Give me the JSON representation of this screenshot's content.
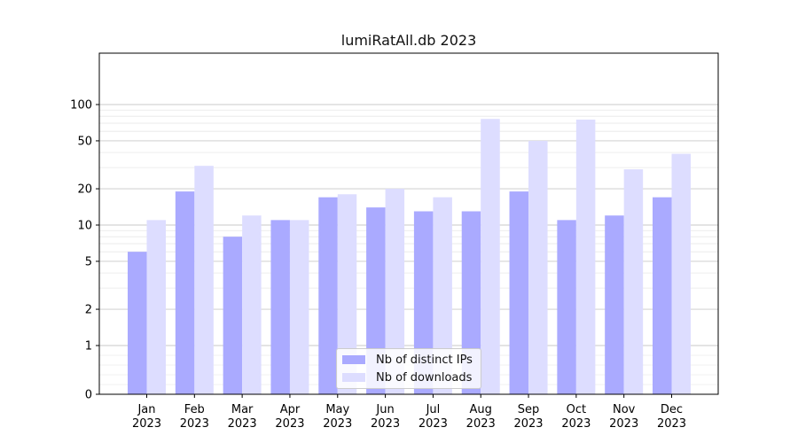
{
  "chart_data": {
    "type": "bar",
    "title": "lumiRatAll.db 2023",
    "xlabel": "",
    "ylabel": "",
    "yscale": "log",
    "yticks": [
      0,
      1,
      2,
      5,
      10,
      20,
      50,
      100
    ],
    "categories": [
      [
        "Jan",
        "2023"
      ],
      [
        "Feb",
        "2023"
      ],
      [
        "Mar",
        "2023"
      ],
      [
        "Apr",
        "2023"
      ],
      [
        "May",
        "2023"
      ],
      [
        "Jun",
        "2023"
      ],
      [
        "Jul",
        "2023"
      ],
      [
        "Aug",
        "2023"
      ],
      [
        "Sep",
        "2023"
      ],
      [
        "Oct",
        "2023"
      ],
      [
        "Nov",
        "2023"
      ],
      [
        "Dec",
        "2023"
      ]
    ],
    "series": [
      {
        "name": "Nb of distinct IPs",
        "color": "#aaaaff",
        "values": [
          6,
          19,
          8,
          11,
          17,
          14,
          13,
          13,
          19,
          11,
          12,
          17
        ]
      },
      {
        "name": "Nb of downloads",
        "color": "#ddddff",
        "values": [
          11,
          31,
          12,
          11,
          18,
          20,
          17,
          76,
          50,
          75,
          29,
          39
        ]
      }
    ],
    "grid": true,
    "legend_position": "bottom-center"
  }
}
